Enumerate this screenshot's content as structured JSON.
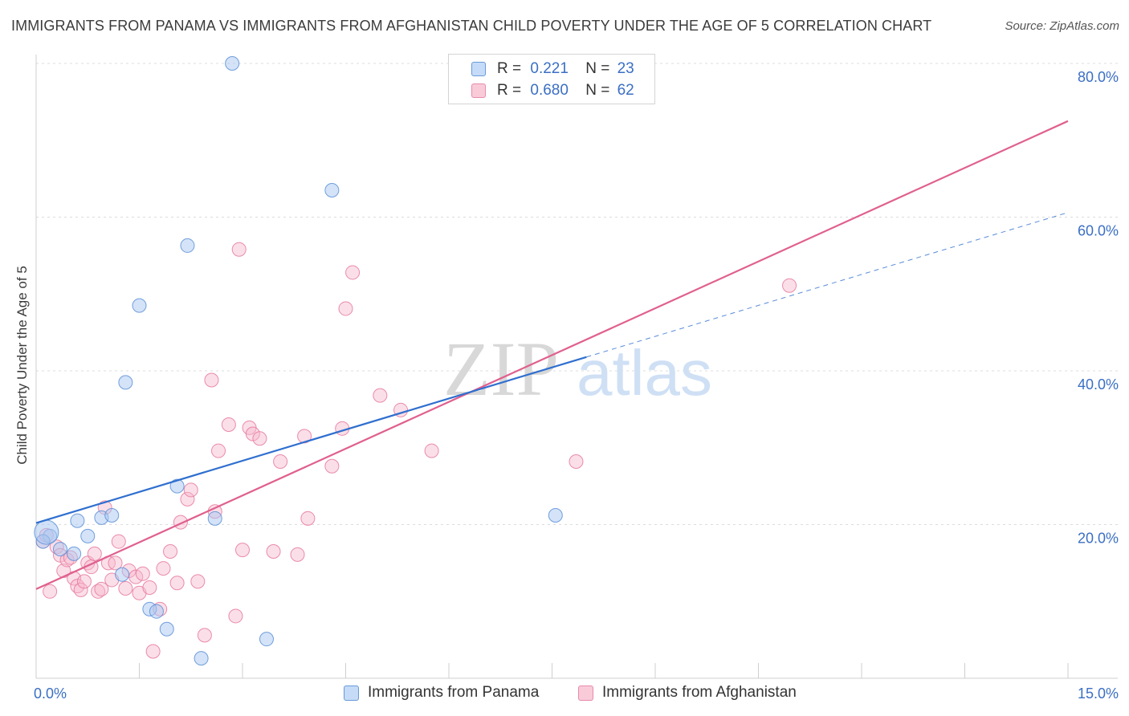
{
  "title": "IMMIGRANTS FROM PANAMA VS IMMIGRANTS FROM AFGHANISTAN CHILD POVERTY UNDER THE AGE OF 5 CORRELATION CHART",
  "source": "Source: ZipAtlas.com",
  "watermark": {
    "zip": "ZIP",
    "atlas": "atlas"
  },
  "legend": {
    "panama": {
      "r_label": "R =",
      "r_value": "0.221",
      "n_label": "N =",
      "n_value": "23"
    },
    "afghanistan": {
      "r_label": "R =",
      "r_value": "0.680",
      "n_label": "N =",
      "n_value": "62"
    }
  },
  "bottom_legend": {
    "panama": "Immigrants from Panama",
    "afghanistan": "Immigrants from Afghanistan"
  },
  "chart_data": {
    "type": "scatter",
    "title": "IMMIGRANTS FROM PANAMA VS IMMIGRANTS FROM AFGHANISTAN CHILD POVERTY UNDER THE AGE OF 5 CORRELATION CHART",
    "xlabel": "",
    "ylabel": "Child Poverty Under the Age of 5",
    "xlim": [
      0,
      15
    ],
    "ylim": [
      0,
      80
    ],
    "x_ticks": [
      {
        "value": 0,
        "label": "0.0%"
      },
      {
        "value": 15,
        "label": "15.0%"
      }
    ],
    "y_ticks": [
      {
        "value": 20,
        "label": "20.0%"
      },
      {
        "value": 40,
        "label": "40.0%"
      },
      {
        "value": 60,
        "label": "60.0%"
      },
      {
        "value": 80,
        "label": "80.0%"
      }
    ],
    "colors": {
      "panama_fill": "#a9c8f2",
      "panama_stroke": "#5b8fd6",
      "panama_line": "#2f6fcf",
      "afghanistan_fill": "#f7b9cd",
      "afghanistan_stroke": "#e6799e",
      "afghanistan_line": "#e0608e"
    },
    "series": [
      {
        "name": "Immigrants from Panama",
        "points": [
          [
            0.2,
            18.5
          ],
          [
            0.1,
            17.8
          ],
          [
            0.35,
            16.8
          ],
          [
            0.6,
            20.5
          ],
          [
            0.55,
            16.2
          ],
          [
            0.75,
            18.5
          ],
          [
            0.95,
            20.9
          ],
          [
            1.1,
            21.2
          ],
          [
            1.3,
            38.5
          ],
          [
            1.5,
            48.5
          ],
          [
            1.25,
            13.5
          ],
          [
            1.65,
            9.0
          ],
          [
            1.75,
            8.7
          ],
          [
            1.9,
            6.4
          ],
          [
            2.05,
            25.0
          ],
          [
            2.2,
            56.3
          ],
          [
            2.4,
            2.6
          ],
          [
            2.6,
            20.8
          ],
          [
            2.85,
            80.0
          ],
          [
            3.35,
            5.1
          ],
          [
            4.3,
            63.5
          ],
          [
            7.55,
            21.2
          ],
          [
            0.15,
            19.0
          ]
        ],
        "trend": {
          "x0": 0,
          "y0": 20.2,
          "x1": 8.0,
          "y1": 41.8
        },
        "trend_dashed": {
          "x0": 8.0,
          "y0": 41.8,
          "x1": 15,
          "y1": 60.6
        }
      },
      {
        "name": "Immigrants from Afghanistan",
        "points": [
          [
            0.1,
            17.8
          ],
          [
            0.15,
            18.6
          ],
          [
            0.2,
            11.3
          ],
          [
            0.3,
            17.1
          ],
          [
            0.35,
            16.0
          ],
          [
            0.4,
            14.0
          ],
          [
            0.45,
            15.4
          ],
          [
            0.5,
            15.7
          ],
          [
            0.55,
            13.0
          ],
          [
            0.6,
            12.0
          ],
          [
            0.65,
            11.5
          ],
          [
            0.7,
            12.6
          ],
          [
            0.75,
            15.0
          ],
          [
            0.8,
            14.5
          ],
          [
            0.85,
            16.2
          ],
          [
            0.9,
            11.3
          ],
          [
            0.95,
            11.6
          ],
          [
            1.0,
            22.2
          ],
          [
            1.05,
            15.0
          ],
          [
            1.1,
            12.8
          ],
          [
            1.15,
            15.0
          ],
          [
            1.2,
            17.8
          ],
          [
            1.3,
            11.7
          ],
          [
            1.35,
            14.0
          ],
          [
            1.45,
            13.2
          ],
          [
            1.5,
            11.1
          ],
          [
            1.55,
            13.6
          ],
          [
            1.65,
            11.8
          ],
          [
            1.7,
            3.5
          ],
          [
            1.8,
            9.0
          ],
          [
            1.85,
            14.3
          ],
          [
            1.95,
            16.5
          ],
          [
            2.05,
            12.4
          ],
          [
            2.1,
            20.3
          ],
          [
            2.2,
            23.3
          ],
          [
            2.25,
            24.5
          ],
          [
            2.35,
            12.6
          ],
          [
            2.45,
            5.6
          ],
          [
            2.55,
            38.8
          ],
          [
            2.6,
            21.7
          ],
          [
            2.65,
            29.6
          ],
          [
            2.8,
            33.0
          ],
          [
            2.9,
            8.1
          ],
          [
            2.95,
            55.8
          ],
          [
            3.0,
            16.7
          ],
          [
            3.1,
            32.6
          ],
          [
            3.15,
            31.8
          ],
          [
            3.25,
            31.2
          ],
          [
            3.45,
            16.5
          ],
          [
            3.55,
            28.2
          ],
          [
            3.8,
            16.1
          ],
          [
            3.9,
            31.5
          ],
          [
            3.95,
            20.8
          ],
          [
            4.3,
            27.6
          ],
          [
            4.45,
            32.5
          ],
          [
            4.5,
            48.1
          ],
          [
            4.6,
            52.8
          ],
          [
            5.0,
            36.8
          ],
          [
            5.3,
            34.9
          ],
          [
            5.75,
            29.6
          ],
          [
            7.85,
            28.2
          ],
          [
            10.95,
            51.1
          ]
        ],
        "trend": {
          "x0": 0,
          "y0": 11.6,
          "x1": 15,
          "y1": 72.5
        }
      }
    ]
  }
}
